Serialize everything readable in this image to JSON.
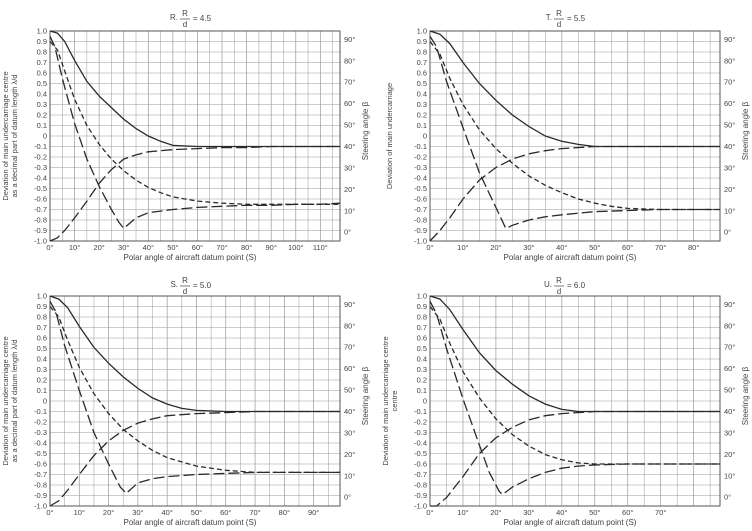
{
  "chart_data": [
    {
      "type": "line",
      "title_prefix": "R.",
      "ratio_num": "R",
      "ratio_den": "d",
      "ratio_value": "= 4.5",
      "xlabel": "Polar angle of aircraft datum point (S)",
      "ylabel_left": [
        "Deviation of main undercarriage centre",
        "as a decimal part of datum length λ/d"
      ],
      "ylabel_right": "Steering angle β",
      "ylim": [
        -1.0,
        1.0
      ],
      "xlim": [
        0,
        118
      ],
      "x_ticks": [
        0,
        10,
        20,
        30,
        40,
        50,
        60,
        70,
        80,
        90,
        100,
        110
      ],
      "x_tick_labels": [
        "0°",
        "10°",
        "20°",
        "30°",
        "40°",
        "50°",
        "60°",
        "70°",
        "80°",
        "90°",
        "100°",
        "110°"
      ],
      "y_tick_labels": [
        "1.0",
        "0.9",
        "0.8",
        "0.7",
        "0.6",
        "0.5",
        "0.4",
        "0.3",
        "0.2",
        "0.1",
        "0",
        "-0.1",
        "-0.2",
        "-0.3",
        "-0.4",
        "-0.5",
        "-0.6",
        "-0.7",
        "-0.8",
        "-0.9",
        "-1.0"
      ],
      "right_tick_labels": [
        "90°",
        "80°",
        "70°",
        "60°",
        "50°",
        "40°",
        "30°",
        "20°",
        "10°",
        "0°"
      ],
      "series": [
        {
          "style": "solid",
          "x": [
            0,
            3,
            6,
            10,
            15,
            20,
            25,
            30,
            35,
            40,
            45,
            50,
            60,
            70,
            80,
            90,
            100,
            110,
            118
          ],
          "y": [
            1.0,
            0.98,
            0.9,
            0.72,
            0.52,
            0.38,
            0.27,
            0.16,
            0.07,
            0.0,
            -0.05,
            -0.09,
            -0.1,
            -0.1,
            -0.1,
            -0.1,
            -0.1,
            -0.1,
            -0.1
          ]
        },
        {
          "style": "dash",
          "x": [
            0,
            3,
            6,
            10,
            15,
            20,
            25,
            30,
            35,
            40,
            45,
            50,
            55,
            60,
            70,
            80,
            90,
            100,
            110,
            118
          ],
          "y": [
            0.9,
            0.82,
            0.62,
            0.35,
            0.1,
            -0.08,
            -0.22,
            -0.33,
            -0.42,
            -0.49,
            -0.54,
            -0.58,
            -0.6,
            -0.62,
            -0.64,
            -0.65,
            -0.65,
            -0.65,
            -0.65,
            -0.65
          ]
        },
        {
          "style": "longdash",
          "x": [
            0,
            2,
            5,
            10,
            15,
            20,
            25,
            28,
            30,
            35,
            40,
            50,
            60,
            70,
            80,
            90,
            100,
            110,
            118
          ],
          "y": [
            0.95,
            0.85,
            0.55,
            0.12,
            -0.22,
            -0.48,
            -0.7,
            -0.82,
            -0.88,
            -0.78,
            -0.73,
            -0.7,
            -0.68,
            -0.67,
            -0.66,
            -0.66,
            -0.65,
            -0.65,
            -0.64
          ]
        },
        {
          "style": "longdash",
          "x": [
            0,
            3,
            6,
            10,
            15,
            20,
            25,
            30,
            35,
            40,
            50,
            60,
            70,
            80,
            90,
            100,
            110,
            118
          ],
          "y": [
            -1.0,
            -0.97,
            -0.9,
            -0.78,
            -0.62,
            -0.45,
            -0.32,
            -0.22,
            -0.18,
            -0.15,
            -0.13,
            -0.12,
            -0.11,
            -0.11,
            -0.1,
            -0.1,
            -0.1,
            -0.1
          ]
        }
      ]
    },
    {
      "type": "line",
      "title_prefix": "T.",
      "ratio_num": "R",
      "ratio_den": "d",
      "ratio_value": "= 5.5",
      "xlabel": "Polar angle of aircraft datum point (S)",
      "ylabel_left": [
        "Deviation of main undercarriage"
      ],
      "ylabel_right": "Steering angle β",
      "ylim": [
        -1.0,
        1.0
      ],
      "xlim": [
        0,
        88
      ],
      "x_ticks": [
        0,
        10,
        20,
        30,
        40,
        50,
        60,
        70,
        80
      ],
      "x_tick_labels": [
        "0°",
        "10°",
        "20°",
        "30°",
        "40°",
        "50°",
        "60°",
        "70°",
        "80°"
      ],
      "y_tick_labels": [
        "1.0",
        "0.9",
        "0.8",
        "0.7",
        "0.6",
        "0.5",
        "0.4",
        "0.3",
        "0.2",
        "0.1",
        "0",
        "-0.1",
        "-0.2",
        "-0.3",
        "-0.4",
        "-0.5",
        "-0.6",
        "-0.7",
        "-0.8",
        "-0.9",
        "-1.0"
      ],
      "right_tick_labels": [
        "90°",
        "80°",
        "70°",
        "60°",
        "50°",
        "40°",
        "30°",
        "20°",
        "10°",
        "0°"
      ],
      "series": [
        {
          "style": "solid",
          "x": [
            0,
            3,
            6,
            10,
            15,
            20,
            25,
            30,
            35,
            40,
            45,
            50,
            55,
            60,
            70,
            80,
            88
          ],
          "y": [
            1.0,
            0.97,
            0.88,
            0.7,
            0.5,
            0.34,
            0.2,
            0.09,
            0.0,
            -0.05,
            -0.08,
            -0.1,
            -0.1,
            -0.1,
            -0.1,
            -0.1,
            -0.1
          ]
        },
        {
          "style": "dash",
          "x": [
            0,
            3,
            6,
            10,
            15,
            20,
            25,
            30,
            35,
            40,
            45,
            50,
            55,
            60,
            70,
            80,
            88
          ],
          "y": [
            0.9,
            0.78,
            0.55,
            0.3,
            0.06,
            -0.12,
            -0.26,
            -0.38,
            -0.47,
            -0.54,
            -0.6,
            -0.64,
            -0.67,
            -0.69,
            -0.7,
            -0.7,
            -0.7
          ]
        },
        {
          "style": "longdash",
          "x": [
            0,
            2,
            5,
            10,
            15,
            20,
            23,
            25,
            30,
            35,
            40,
            50,
            60,
            70,
            80,
            88
          ],
          "y": [
            0.95,
            0.85,
            0.52,
            0.08,
            -0.35,
            -0.68,
            -0.88,
            -0.85,
            -0.8,
            -0.77,
            -0.75,
            -0.72,
            -0.71,
            -0.7,
            -0.7,
            -0.7
          ]
        },
        {
          "style": "longdash",
          "x": [
            0,
            3,
            6,
            10,
            15,
            20,
            25,
            30,
            35,
            40,
            50,
            60,
            70,
            80,
            88
          ],
          "y": [
            -1.0,
            -0.9,
            -0.78,
            -0.6,
            -0.42,
            -0.3,
            -0.22,
            -0.17,
            -0.14,
            -0.12,
            -0.1,
            -0.1,
            -0.1,
            -0.1,
            -0.1
          ]
        }
      ]
    },
    {
      "type": "line",
      "title_prefix": "S.",
      "ratio_num": "R",
      "ratio_den": "d",
      "ratio_value": "= 5.0",
      "xlabel": "Polar angle of aircraft datum point (S)",
      "ylabel_left": [
        "Deviation of main undercarriage centre",
        "as a decimal part of datum length λ/d"
      ],
      "ylabel_right": "Steering angle β",
      "ylim": [
        -1.0,
        1.0
      ],
      "xlim": [
        0,
        99
      ],
      "x_ticks": [
        0,
        10,
        20,
        30,
        40,
        50,
        60,
        70,
        80,
        90
      ],
      "x_tick_labels": [
        "0°",
        "10°",
        "20°",
        "30°",
        "40°",
        "50°",
        "60°",
        "70°",
        "80°",
        "90°"
      ],
      "y_tick_labels": [
        "1.0",
        "0.9",
        "0.8",
        "0.7",
        "0.6",
        "0.5",
        "0.4",
        "0.3",
        "0.2",
        "0.1",
        "0",
        "-0.1",
        "-0.2",
        "-0.3",
        "-0.4",
        "-0.5",
        "-0.6",
        "-0.7",
        "-0.8",
        "-0.9",
        "-1.0"
      ],
      "right_tick_labels": [
        "90°",
        "80°",
        "70°",
        "60°",
        "50°",
        "40°",
        "30°",
        "20°",
        "10°",
        "0°"
      ],
      "series": [
        {
          "style": "solid",
          "x": [
            0,
            3,
            6,
            10,
            15,
            20,
            25,
            30,
            35,
            40,
            45,
            50,
            60,
            70,
            80,
            90,
            99
          ],
          "y": [
            1.0,
            0.97,
            0.89,
            0.71,
            0.51,
            0.36,
            0.23,
            0.12,
            0.03,
            -0.03,
            -0.07,
            -0.09,
            -0.1,
            -0.1,
            -0.1,
            -0.1,
            -0.1
          ]
        },
        {
          "style": "dash",
          "x": [
            0,
            3,
            6,
            10,
            15,
            20,
            25,
            30,
            35,
            40,
            50,
            60,
            70,
            80,
            90,
            99
          ],
          "y": [
            0.9,
            0.8,
            0.58,
            0.32,
            0.07,
            -0.12,
            -0.27,
            -0.38,
            -0.47,
            -0.54,
            -0.62,
            -0.66,
            -0.68,
            -0.68,
            -0.68,
            -0.68
          ]
        },
        {
          "style": "longdash",
          "x": [
            0,
            2,
            5,
            10,
            15,
            20,
            24,
            26,
            30,
            35,
            40,
            50,
            60,
            70,
            80,
            90,
            99
          ],
          "y": [
            0.95,
            0.85,
            0.53,
            0.1,
            -0.3,
            -0.6,
            -0.82,
            -0.88,
            -0.78,
            -0.74,
            -0.72,
            -0.7,
            -0.69,
            -0.68,
            -0.68,
            -0.68,
            -0.68
          ]
        },
        {
          "style": "longdash",
          "x": [
            0,
            3,
            6,
            10,
            15,
            20,
            25,
            30,
            35,
            40,
            50,
            60,
            70,
            80,
            90,
            99
          ],
          "y": [
            -1.0,
            -0.95,
            -0.85,
            -0.7,
            -0.52,
            -0.38,
            -0.28,
            -0.21,
            -0.17,
            -0.14,
            -0.12,
            -0.11,
            -0.1,
            -0.1,
            -0.1,
            -0.1
          ]
        }
      ]
    },
    {
      "type": "line",
      "title_prefix": "U.",
      "ratio_num": "R",
      "ratio_den": "d",
      "ratio_value": "= 6.0",
      "xlabel": "Polar angle of aircraft datum point (S)",
      "ylabel_left": [
        "Deviation of main undercarriage centre",
        "centre"
      ],
      "ylabel_right": "Steering angle β",
      "ylim": [
        -1.0,
        1.0
      ],
      "xlim": [
        0,
        88
      ],
      "x_ticks": [
        0,
        10,
        20,
        30,
        40,
        50,
        60,
        70,
        80
      ],
      "x_tick_labels": [
        "0°",
        "10°",
        "20°",
        "30°",
        "40°",
        "50°",
        "60°",
        "70°",
        ""
      ],
      "y_tick_labels": [
        "1.0",
        "0.9",
        "0.8",
        "0.7",
        "0.6",
        "0.5",
        "0.4",
        "0.3",
        "0.2",
        "0.1",
        "0",
        "-0.1",
        "-0.2",
        "-0.3",
        "-0.4",
        "-0.5",
        "-0.6",
        "-0.7",
        "-0.8",
        "-0.9",
        "-1.0"
      ],
      "right_tick_labels": [
        "90°",
        "80°",
        "70°",
        "60°",
        "50°",
        "40°",
        "30°",
        "20°",
        "10°",
        "0°"
      ],
      "series": [
        {
          "style": "solid",
          "x": [
            0,
            3,
            6,
            10,
            15,
            20,
            25,
            30,
            35,
            40,
            45,
            50,
            60,
            70,
            80,
            88
          ],
          "y": [
            1.0,
            0.97,
            0.87,
            0.68,
            0.46,
            0.29,
            0.16,
            0.05,
            -0.03,
            -0.08,
            -0.1,
            -0.1,
            -0.1,
            -0.1,
            -0.1,
            -0.1
          ]
        },
        {
          "style": "dash",
          "x": [
            0,
            3,
            6,
            10,
            15,
            20,
            25,
            30,
            35,
            40,
            45,
            50,
            60,
            70,
            80,
            88
          ],
          "y": [
            0.9,
            0.78,
            0.55,
            0.28,
            0.03,
            -0.17,
            -0.32,
            -0.43,
            -0.51,
            -0.56,
            -0.59,
            -0.6,
            -0.6,
            -0.6,
            -0.6,
            -0.6
          ]
        },
        {
          "style": "longdash",
          "x": [
            0,
            2,
            5,
            10,
            15,
            18,
            21,
            22,
            25,
            30,
            35,
            40,
            45,
            50,
            60,
            70,
            80,
            88
          ],
          "y": [
            0.95,
            0.83,
            0.5,
            0.02,
            -0.42,
            -0.68,
            -0.86,
            -0.89,
            -0.82,
            -0.74,
            -0.68,
            -0.64,
            -0.62,
            -0.61,
            -0.6,
            -0.6,
            -0.6,
            -0.6
          ]
        },
        {
          "style": "longdash",
          "x": [
            0,
            2,
            5,
            10,
            15,
            20,
            25,
            30,
            35,
            40,
            50,
            60,
            70,
            80,
            88
          ],
          "y": [
            -1.0,
            -1.0,
            -0.92,
            -0.72,
            -0.5,
            -0.35,
            -0.25,
            -0.18,
            -0.14,
            -0.12,
            -0.1,
            -0.1,
            -0.1,
            -0.1,
            -0.1
          ]
        }
      ]
    }
  ]
}
